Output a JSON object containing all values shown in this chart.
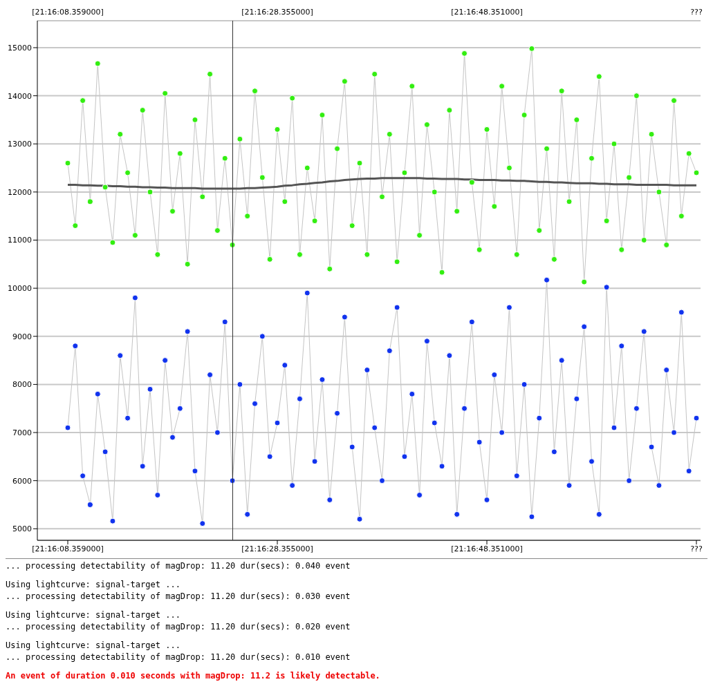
{
  "chart_data": {
    "type": "line",
    "marker": "circle",
    "line_style": "solid",
    "grid": "y",
    "categories": [
      "[21:16:08.359000]",
      null,
      null,
      null,
      null,
      null,
      null,
      null,
      null,
      null,
      null,
      null,
      null,
      null,
      null,
      null,
      null,
      null,
      null,
      null,
      null,
      null,
      null,
      null,
      null,
      null,
      null,
      null,
      "[21:16:28.355000]",
      null,
      null,
      null,
      null,
      null,
      null,
      null,
      null,
      null,
      null,
      null,
      null,
      null,
      null,
      null,
      null,
      null,
      null,
      null,
      null,
      null,
      null,
      null,
      null,
      null,
      null,
      null,
      "[21:16:48.351000]",
      null,
      null,
      null,
      null,
      null,
      null,
      null,
      null,
      null,
      null,
      null,
      null,
      null,
      null,
      null,
      null,
      null,
      null,
      null,
      null,
      null,
      null,
      null,
      null,
      null,
      null,
      null,
      "???"
    ],
    "series": [
      {
        "color": "#33ee11",
        "values": [
          12600,
          11300,
          13900,
          11800,
          14670,
          12100,
          10950,
          13200,
          12400,
          11100,
          13700,
          12000,
          10700,
          14050,
          11600,
          12800,
          10500,
          13500,
          11900,
          14450,
          11200,
          12700,
          10900,
          13100,
          11500,
          14100,
          12300,
          10600,
          13300,
          11800,
          13950,
          10700,
          12500,
          11400,
          13600,
          10400,
          12900,
          14300,
          11300,
          12600,
          10700,
          14450,
          11900,
          13200,
          10550,
          12400,
          14200,
          11100,
          13400,
          12000,
          10330,
          13700,
          11600,
          14880,
          12200,
          10800,
          13300,
          11700,
          14200,
          12500,
          10700,
          13600,
          14980,
          11200,
          12900,
          10600,
          14100,
          11800,
          13500,
          10130,
          12700,
          14400,
          11400,
          13000,
          10800,
          12300,
          14000,
          11000,
          13200,
          12000,
          10900,
          13900,
          11500,
          12800,
          12400
        ]
      },
      {
        "color": "#1133ee",
        "values": [
          7100,
          8800,
          6100,
          5500,
          7800,
          6600,
          5160,
          8600,
          7300,
          9800,
          6300,
          7900,
          5700,
          8500,
          6900,
          7500,
          9100,
          6200,
          5110,
          8200,
          7000,
          9300,
          6000,
          8000,
          5300,
          7600,
          9000,
          6500,
          7200,
          8400,
          5900,
          7700,
          9900,
          6400,
          8100,
          5600,
          7400,
          9400,
          6700,
          5200,
          8300,
          7100,
          6000,
          8700,
          9600,
          6500,
          7800,
          5700,
          8900,
          7200,
          6300,
          8600,
          5300,
          7500,
          9300,
          6800,
          5600,
          8200,
          7000,
          9600,
          6100,
          8000,
          5250,
          7300,
          10170,
          6600,
          8500,
          5900,
          7700,
          9200,
          6400,
          5300,
          10020,
          7100,
          8800,
          6000,
          7500,
          9100,
          6700,
          5900,
          8300,
          7000,
          9500,
          6200,
          7300
        ]
      },
      {
        "color": "#555555",
        "marker": "none",
        "values": [
          12150,
          12150,
          12140,
          12140,
          12130,
          12130,
          12120,
          12120,
          12110,
          12110,
          12100,
          12100,
          12090,
          12090,
          12080,
          12080,
          12080,
          12080,
          12070,
          12070,
          12070,
          12070,
          12070,
          12070,
          12080,
          12080,
          12090,
          12100,
          12110,
          12130,
          12140,
          12160,
          12170,
          12190,
          12200,
          12220,
          12230,
          12250,
          12260,
          12270,
          12280,
          12280,
          12290,
          12290,
          12290,
          12290,
          12290,
          12290,
          12280,
          12280,
          12270,
          12270,
          12270,
          12260,
          12260,
          12250,
          12250,
          12250,
          12240,
          12240,
          12230,
          12230,
          12220,
          12210,
          12210,
          12200,
          12200,
          12190,
          12180,
          12180,
          12180,
          12170,
          12170,
          12160,
          12160,
          12160,
          12150,
          12150,
          12150,
          12150,
          12150,
          12140,
          12140,
          12140,
          12140
        ]
      }
    ],
    "ylim": [
      4760,
      15560
    ],
    "yticks": [
      5000,
      6000,
      7000,
      8000,
      9000,
      10000,
      11000,
      12000,
      13000,
      14000,
      15000
    ],
    "annotations": [
      "... processing detectability of magDrop: 11.20 dur(secs): 0.040 event",
      "Using lightcurve: signal-target ...",
      "... processing detectability of magDrop: 11.20 dur(secs): 0.030 event",
      "Using lightcurve: signal-target ...",
      "... processing detectability of magDrop: 11.20 dur(secs): 0.020 event",
      "Using lightcurve: signal-target ...",
      "... processing detectability of magDrop: 11.20 dur(secs): 0.010 event",
      "An event of duration 0.010 seconds with magDrop: 11.2 is likely detectable."
    ]
  }
}
